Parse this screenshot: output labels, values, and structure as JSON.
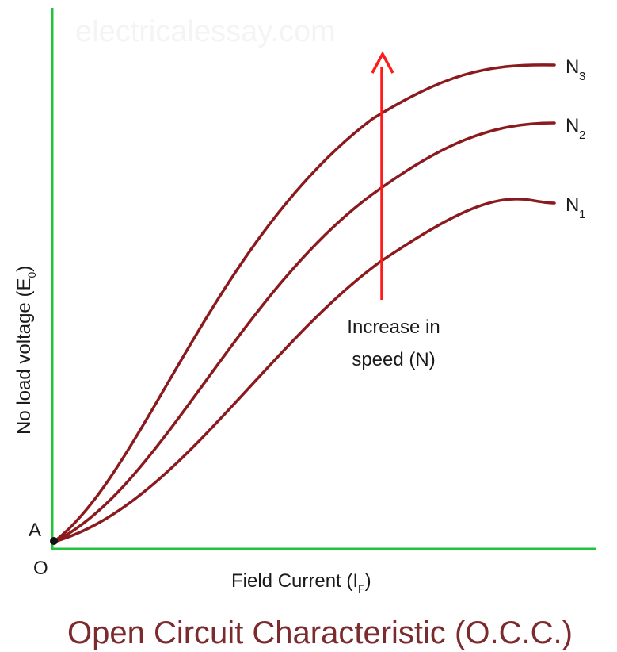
{
  "watermark": "electricalessay.com",
  "axes": {
    "x_label": "Field Current (I",
    "x_label_sub": "F",
    "x_label_close": ")",
    "y_label": "No load voltage (E",
    "y_label_sub": "0",
    "y_label_close": ")",
    "origin_label": "O",
    "point_label": "A"
  },
  "curves": [
    {
      "name": "N",
      "subscript": "1"
    },
    {
      "name": "N",
      "subscript": "2"
    },
    {
      "name": "N",
      "subscript": "3"
    }
  ],
  "annotation": {
    "line1": "Increase in",
    "line2": "speed (N)"
  },
  "title": "Open Circuit Characteristic (O.C.C.)",
  "colors": {
    "axes": "#22c33a",
    "curves": "#8b1a1f",
    "arrow": "#ff1a1a",
    "title": "#7b2a2e",
    "text": "#1a1a1a"
  }
}
